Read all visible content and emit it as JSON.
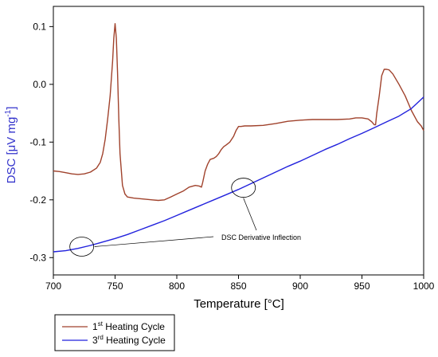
{
  "chart_data": {
    "type": "line",
    "xlabel": "Temperature [°C]",
    "ylabel_main": "DSC [μV mg",
    "ylabel_sup": "-1",
    "ylabel_tail": "]",
    "xlim": [
      700,
      1000
    ],
    "ylim": [
      -0.33,
      0.135
    ],
    "x_ticks": [
      700,
      750,
      800,
      850,
      900,
      950,
      1000
    ],
    "y_ticks": [
      -0.3,
      -0.2,
      -0.1,
      0.0,
      0.1
    ],
    "y_tick_labels": [
      "-0.3",
      "-0.2",
      "-0.1",
      "0.0",
      "0.1"
    ],
    "grid": false,
    "legend_placement": "bottom-left, below plot",
    "series": [
      {
        "name_main": "1",
        "name_sup": "st",
        "name_tail": " Heating Cycle",
        "color": "#a0422c",
        "x": [
          700,
          705,
          710,
          715,
          720,
          725,
          730,
          735,
          738,
          740,
          742,
          744,
          746,
          748,
          749,
          750,
          751,
          752,
          753,
          754,
          756,
          758,
          760,
          765,
          770,
          775,
          780,
          785,
          790,
          795,
          800,
          805,
          810,
          815,
          818,
          820,
          821,
          823,
          825,
          827,
          830,
          832,
          834,
          836,
          838,
          840,
          843,
          846,
          848,
          850,
          852,
          855,
          860,
          870,
          880,
          890,
          900,
          910,
          920,
          930,
          940,
          945,
          950,
          955,
          958,
          960,
          961,
          962,
          964,
          966,
          968,
          970,
          972,
          975,
          980,
          985,
          990,
          995,
          998,
          1000
        ],
        "y": [
          -0.15,
          -0.151,
          -0.153,
          -0.155,
          -0.156,
          -0.155,
          -0.152,
          -0.145,
          -0.135,
          -0.12,
          -0.095,
          -0.06,
          -0.02,
          0.04,
          0.08,
          0.105,
          0.08,
          0.02,
          -0.06,
          -0.12,
          -0.175,
          -0.19,
          -0.195,
          -0.197,
          -0.198,
          -0.199,
          -0.2,
          -0.201,
          -0.2,
          -0.195,
          -0.19,
          -0.185,
          -0.178,
          -0.175,
          -0.176,
          -0.178,
          -0.17,
          -0.15,
          -0.138,
          -0.13,
          -0.128,
          -0.125,
          -0.12,
          -0.113,
          -0.108,
          -0.105,
          -0.1,
          -0.09,
          -0.08,
          -0.073,
          -0.073,
          -0.072,
          -0.072,
          -0.071,
          -0.068,
          -0.064,
          -0.062,
          -0.061,
          -0.061,
          -0.061,
          -0.06,
          -0.058,
          -0.058,
          -0.06,
          -0.065,
          -0.07,
          -0.07,
          -0.05,
          -0.02,
          0.015,
          0.026,
          0.026,
          0.025,
          0.018,
          0.0,
          -0.02,
          -0.045,
          -0.065,
          -0.072,
          -0.08
        ]
      },
      {
        "name_main": "3",
        "name_sup": "rd",
        "name_tail": " Heating Cycle",
        "color": "#2222dd",
        "x": [
          700,
          710,
          720,
          730,
          740,
          750,
          760,
          770,
          780,
          790,
          800,
          810,
          820,
          830,
          840,
          850,
          860,
          870,
          880,
          890,
          900,
          910,
          920,
          930,
          940,
          950,
          960,
          970,
          980,
          990,
          1000
        ],
        "y": [
          -0.29,
          -0.288,
          -0.284,
          -0.279,
          -0.273,
          -0.267,
          -0.26,
          -0.252,
          -0.244,
          -0.236,
          -0.227,
          -0.218,
          -0.209,
          -0.2,
          -0.191,
          -0.182,
          -0.172,
          -0.162,
          -0.152,
          -0.142,
          -0.133,
          -0.123,
          -0.113,
          -0.104,
          -0.094,
          -0.085,
          -0.075,
          -0.065,
          -0.055,
          -0.042,
          -0.022
        ]
      }
    ],
    "annotation": {
      "text": "DSC Derivative Inflection",
      "circles": [
        {
          "x": 723,
          "y": -0.281
        },
        {
          "x": 854,
          "y": -0.179
        }
      ]
    }
  }
}
